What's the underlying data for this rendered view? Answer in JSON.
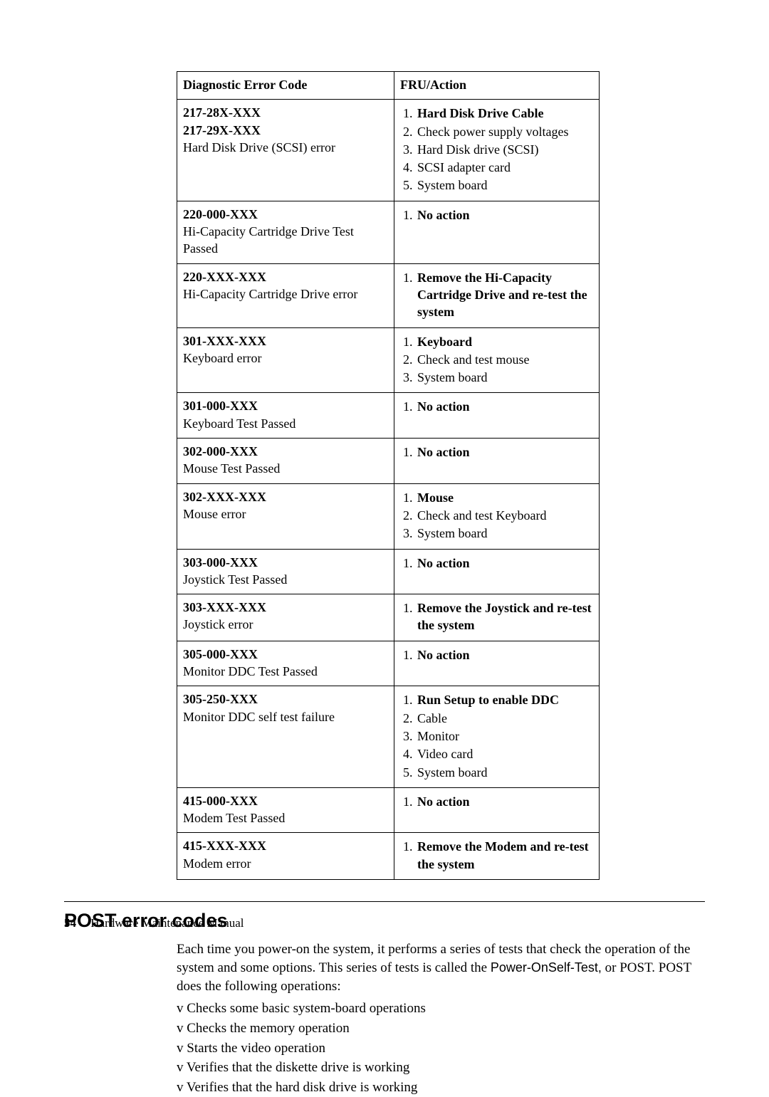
{
  "table": {
    "headers": [
      "Diagnostic Error Code",
      "FRU/Action"
    ],
    "rows": [
      {
        "codes": [
          "217-28X-XXX",
          "217-29X-XXX"
        ],
        "desc": "Hard Disk Drive (SCSI) error",
        "actions": [
          {
            "t": "Hard Disk Drive Cable",
            "b": true
          },
          {
            "t": "Check power supply voltages",
            "b": false
          },
          {
            "t": "Hard Disk drive (SCSI)",
            "b": false
          },
          {
            "t": "SCSI adapter card",
            "b": false
          },
          {
            "t": "System board",
            "b": false
          }
        ]
      },
      {
        "codes": [
          "220-000-XXX"
        ],
        "desc": "Hi-Capacity Cartridge Drive Test Passed",
        "actions": [
          {
            "t": "No action",
            "b": true
          }
        ]
      },
      {
        "codes": [
          "220-XXX-XXX"
        ],
        "desc": "Hi-Capacity Cartridge Drive error",
        "actions": [
          {
            "t": "Remove the Hi-Capacity Cartridge Drive and re-test the system",
            "b": true
          }
        ]
      },
      {
        "codes": [
          "301-XXX-XXX"
        ],
        "desc": "Keyboard error",
        "actions": [
          {
            "t": "Keyboard",
            "b": true
          },
          {
            "t": "Check and test mouse",
            "b": false
          },
          {
            "t": "System board",
            "b": false
          }
        ]
      },
      {
        "codes": [
          "301-000-XXX"
        ],
        "desc": "Keyboard Test Passed",
        "actions": [
          {
            "t": "No action",
            "b": true
          }
        ]
      },
      {
        "codes": [
          "302-000-XXX"
        ],
        "desc": "Mouse Test Passed",
        "actions": [
          {
            "t": "No action",
            "b": true
          }
        ]
      },
      {
        "codes": [
          "302-XXX-XXX"
        ],
        "desc": "Mouse error",
        "actions": [
          {
            "t": "Mouse",
            "b": true
          },
          {
            "t": "Check and test Keyboard",
            "b": false
          },
          {
            "t": "System board",
            "b": false
          }
        ]
      },
      {
        "codes": [
          "303-000-XXX"
        ],
        "desc": "Joystick Test Passed",
        "actions": [
          {
            "t": "No action",
            "b": true
          }
        ]
      },
      {
        "codes": [
          "303-XXX-XXX"
        ],
        "desc": "Joystick error",
        "actions": [
          {
            "t": "Remove the Joystick and re-test the system",
            "b": true
          }
        ]
      },
      {
        "codes": [
          "305-000-XXX"
        ],
        "desc": "Monitor DDC Test Passed",
        "actions": [
          {
            "t": "No action",
            "b": true
          }
        ]
      },
      {
        "codes": [
          "305-250-XXX"
        ],
        "desc": "Monitor DDC self test failure",
        "actions": [
          {
            "t": "Run Setup to enable DDC",
            "b": true
          },
          {
            "t": "Cable",
            "b": false
          },
          {
            "t": "Monitor",
            "b": false
          },
          {
            "t": "Video card",
            "b": false
          },
          {
            "t": "System board",
            "b": false
          }
        ]
      },
      {
        "codes": [
          "415-000-XXX"
        ],
        "desc": "Modem Test Passed",
        "actions": [
          {
            "t": "No action",
            "b": true
          }
        ]
      },
      {
        "codes": [
          "415-XXX-XXX"
        ],
        "desc": "Modem error",
        "actions": [
          {
            "t": "Remove the Modem and re-test the system",
            "b": true
          }
        ]
      }
    ]
  },
  "section": {
    "title": "POST error codes",
    "para_pre": "Each time you power-on the system, it performs a series of tests that check the operation of the system and some options. This series of tests is called the ",
    "post_term": "Power-OnSelf-Test,",
    "para_post": "or POST. POST does the following operations:",
    "items": [
      "Checks some basic system-board operations",
      "Checks the memory operation",
      "Starts the video operation",
      "Verifies that the diskette drive is working",
      "Verifies that the hard disk drive is working"
    ]
  },
  "footer": {
    "page": "54",
    "title": "Hardware Maintenance Manual"
  }
}
